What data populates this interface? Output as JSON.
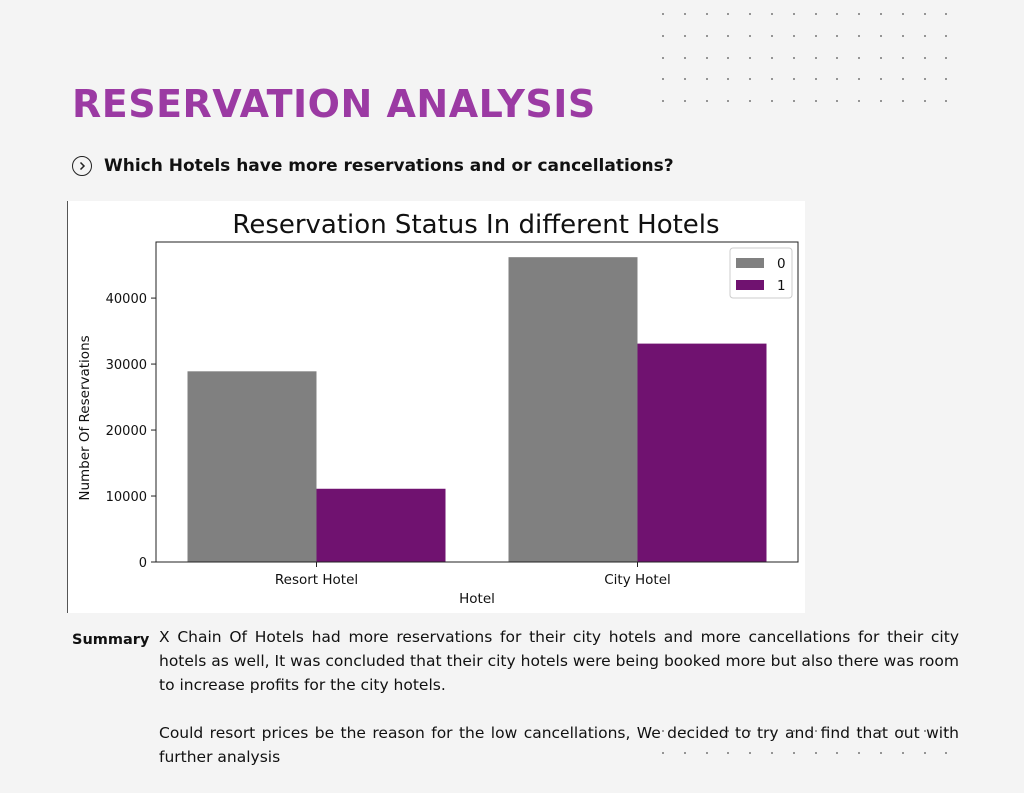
{
  "page": {
    "title": "RESERVATION ANALYSIS",
    "question": "Which Hotels have more reservations and or cancellations?",
    "question_icon": "chevron-right-circle-icon",
    "accent_color": "#9b3aa3"
  },
  "summary": {
    "label": "Summary",
    "paragraphs": [
      "X  Chain Of Hotels had more reservations for their city hotels and more cancellations for their city hotels as well,  It was concluded that their city hotels were being booked more but also there was room to increase profits for the city hotels.",
      "Could resort prices be the reason for the low cancellations, We decided to try and find that out with further analysis"
    ]
  },
  "chart_data": {
    "type": "bar",
    "title": "Reservation Status In different Hotels",
    "xlabel": "Hotel",
    "ylabel": "Number Of Reservations",
    "categories": [
      "Resort Hotel",
      "City Hotel"
    ],
    "series": [
      {
        "name": "0",
        "values": [
          28900,
          46200
        ],
        "color": "#808080"
      },
      {
        "name": "1",
        "values": [
          11100,
          33100
        ],
        "color": "#701270"
      }
    ],
    "ylim": [
      0,
      48500
    ],
    "yticks": [
      0,
      10000,
      20000,
      30000,
      40000
    ],
    "grid": false,
    "legend_position": "top-right"
  }
}
